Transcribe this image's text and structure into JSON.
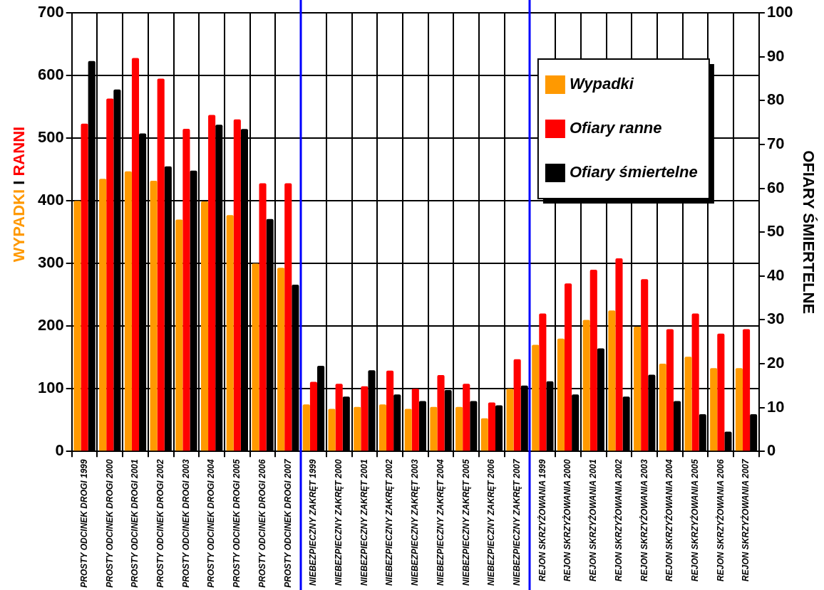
{
  "chart_data": {
    "type": "bar",
    "ylabel": "WYPADKI I RANNI",
    "y2label": "OFIARY ŚMIERTELNE",
    "categories": [
      "PROSTY ODCINEK DROGI 1999",
      "PROSTY ODCINEK DROGI 2000",
      "PROSTY ODCINEK DROGI 2001",
      "PROSTY ODCINEK DROGI 2002",
      "PROSTY ODCINEK DROGI 2003",
      "PROSTY ODCINEK DROGI 2004",
      "PROSTY ODCINEK DROGI 2005",
      "PROSTY ODCINEK DROGI 2006",
      "PROSTY ODCINEK DROGI 2007",
      "NIEBEZPIECZNY ZAKRĘT 1999",
      "NIEBEZPIECZNY ZAKRĘT 2000",
      "NIEBEZPIECZNY ZAKRĘT 2001",
      "NIEBEZPIECZNY ZAKRĘT 2002",
      "NIEBEZPIECZNY ZAKRĘT 2003",
      "NIEBEZPIECZNY ZAKRĘT 2004",
      "NIEBEZPIECZNY ZAKRĘT 2005",
      "NIEBEZPIECZNY ZAKRĘT 2006",
      "NIEBEZPIECZNY ZAKRĘT 2007",
      "REJON SKRZYŻOWANIA 1999",
      "REJON SKRZYŻOWANIA 2000",
      "REJON SKRZYŻOWANIA 2001",
      "REJON SKRZYŻOWANIA 2002",
      "REJON SKRZYŻOWANIA 2003",
      "REJON SKRZYŻOWANIA 2004",
      "REJON SKRZYŻOWANIA 2005",
      "REJON SKRZYŻOWANIA 2006",
      "REJON SKRZYŻOWANIA 2007"
    ],
    "series": [
      {
        "name": "Wypadki",
        "color": "#ff9900",
        "values": [
          400,
          435,
          447,
          432,
          370,
          399,
          377,
          300,
          293,
          75,
          68,
          71,
          75,
          68,
          71,
          71,
          53,
          100,
          170,
          180,
          210,
          225,
          199,
          140,
          151,
          133,
          133
        ]
      },
      {
        "name": "Ofiary ranne",
        "color": "#ff0000",
        "values": [
          523,
          563,
          628,
          595,
          515,
          537,
          530,
          428,
          428,
          111,
          108,
          104,
          129,
          100,
          122,
          108,
          78,
          147,
          220,
          268,
          290,
          308,
          275,
          195,
          220,
          188,
          195
        ]
      },
      {
        "name": "Ofiary śmiertelne",
        "color": "#000000",
        "axis": "y2",
        "values": [
          89,
          82.5,
          72.5,
          65,
          64,
          74.5,
          73.5,
          53,
          38,
          19.5,
          12.5,
          18.5,
          13,
          11.5,
          14,
          11.5,
          10.5,
          15,
          16,
          13,
          23.5,
          12.5,
          17.5,
          11.5,
          8.5,
          4.5,
          8.5
        ]
      }
    ],
    "ylim": [
      0,
      700
    ],
    "yticks": [
      0,
      100,
      200,
      300,
      400,
      500,
      600,
      700
    ],
    "y2lim": [
      0,
      100
    ],
    "y2ticks": [
      0,
      10,
      20,
      30,
      40,
      50,
      60,
      70,
      80,
      90,
      100
    ],
    "grid": true,
    "legend": "top right"
  }
}
